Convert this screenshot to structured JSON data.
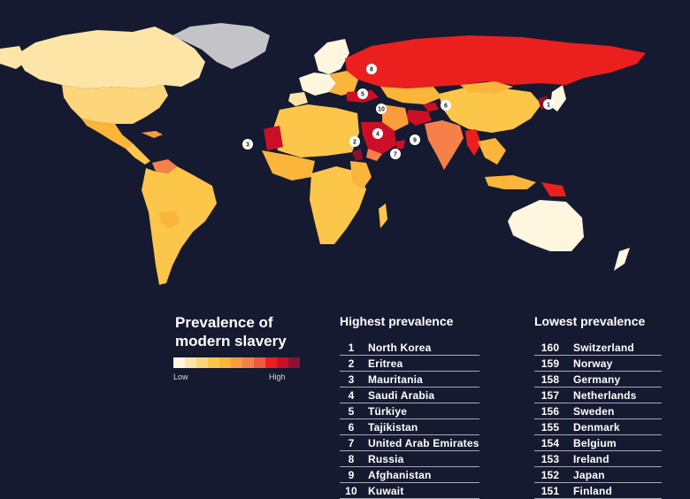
{
  "colors": {
    "background": "#161a30",
    "scale": [
      "#fff6e0",
      "#fde5a8",
      "#fdd57a",
      "#fcc64a",
      "#fbb53a",
      "#f99c3c",
      "#f6804a",
      "#f25a3e",
      "#ec1f1f",
      "#cc0f26",
      "#8e1030"
    ],
    "greenland": "#c4c4c8"
  },
  "legend": {
    "title": "Prevalence of modern slavery",
    "low": "Low",
    "high": "High"
  },
  "highest": {
    "title": "Highest prevalence",
    "items": [
      {
        "rank": "1",
        "country": "North Korea"
      },
      {
        "rank": "2",
        "country": "Eritrea"
      },
      {
        "rank": "3",
        "country": "Mauritania"
      },
      {
        "rank": "4",
        "country": "Saudi Arabia"
      },
      {
        "rank": "5",
        "country": "Türkiye"
      },
      {
        "rank": "6",
        "country": "Tajikistan"
      },
      {
        "rank": "7",
        "country": "United Arab Emirates"
      },
      {
        "rank": "8",
        "country": "Russia"
      },
      {
        "rank": "9",
        "country": "Afghanistan"
      },
      {
        "rank": "10",
        "country": "Kuwait"
      }
    ]
  },
  "lowest": {
    "title": "Lowest  prevalence",
    "items": [
      {
        "rank": "160",
        "country": "Switzerland"
      },
      {
        "rank": "159",
        "country": "Norway"
      },
      {
        "rank": "158",
        "country": "Germany"
      },
      {
        "rank": "157",
        "country": "Netherlands"
      },
      {
        "rank": "156",
        "country": "Sweden"
      },
      {
        "rank": "155",
        "country": "Denmark"
      },
      {
        "rank": "154",
        "country": "Belgium"
      },
      {
        "rank": "153",
        "country": "Ireland"
      },
      {
        "rank": "152",
        "country": "Japan"
      },
      {
        "rank": "151",
        "country": "Finland"
      }
    ]
  },
  "map_markers": [
    {
      "label": "1",
      "country": "North Korea"
    },
    {
      "label": "2",
      "country": "Eritrea"
    },
    {
      "label": "3",
      "country": "Mauritania"
    },
    {
      "label": "4",
      "country": "Saudi Arabia"
    },
    {
      "label": "5",
      "country": "Türkiye"
    },
    {
      "label": "6",
      "country": "Tajikistan"
    },
    {
      "label": "7",
      "country": "United Arab Emirates"
    },
    {
      "label": "8",
      "country": "Russia"
    },
    {
      "label": "9",
      "country": "Afghanistan"
    },
    {
      "label": "10",
      "country": "Kuwait"
    }
  ]
}
